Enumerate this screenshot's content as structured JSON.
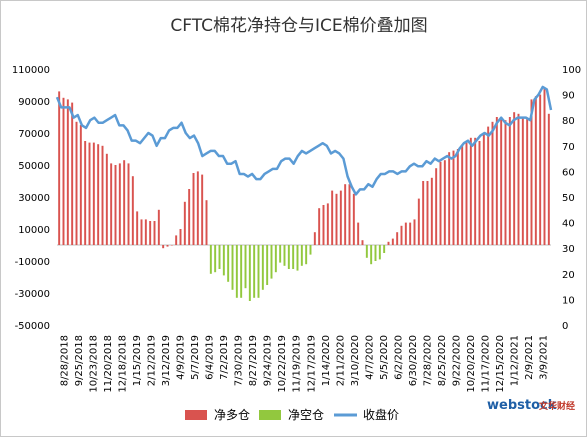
{
  "chart_data": {
    "type": "bar",
    "title": "CFTC棉花净持仓与ICE棉价叠加图",
    "left_axis": {
      "min": -50000,
      "max": 110000,
      "ticks": [
        -50000,
        -30000,
        -10000,
        10000,
        30000,
        50000,
        70000,
        90000,
        110000
      ]
    },
    "right_axis": {
      "min": 0,
      "max": 100,
      "ticks": [
        0,
        10,
        20,
        30,
        40,
        50,
        60,
        70,
        80,
        90,
        100
      ]
    },
    "x_tick_labels": [
      "8/28/2018",
      "9/25/2018",
      "10/23/2018",
      "11/20/2018",
      "12/18/2018",
      "1/15/2019",
      "2/12/2019",
      "3/12/2019",
      "4/9/2019",
      "5/7/2019",
      "6/4/2019",
      "7/2/2019",
      "7/30/2019",
      "8/27/2019",
      "9/24/2019",
      "10/22/2019",
      "11/19/2019",
      "12/17/2019",
      "1/14/2020",
      "2/11/2020",
      "3/10/2020",
      "4/7/2020",
      "5/5/2020",
      "6/2/2020",
      "6/30/2020",
      "7/28/2020",
      "8/25/2020",
      "9/22/2020",
      "10/20/2020",
      "11/17/2020",
      "12/15/2020",
      "1/12/2021",
      "2/9/2021",
      "3/9/2021"
    ],
    "series": [
      {
        "name": "净多仓",
        "color": "#d9534f",
        "axis": "left",
        "values": [
          96000,
          92000,
          91000,
          89000,
          77000,
          75000,
          65000,
          64000,
          64000,
          63000,
          62000,
          57000,
          51000,
          50000,
          51000,
          53000,
          51000,
          43000,
          21000,
          16000,
          16000,
          15000,
          15000,
          22000,
          -2000,
          -1000,
          0,
          6000,
          10000,
          27000,
          35000,
          45000,
          46000,
          44000,
          28000
        ]
      },
      {
        "name": "净空仓",
        "color": "#92c83e",
        "axis": "left",
        "values": [
          -18000,
          -17000,
          -15000,
          -19000,
          -23000,
          -28000,
          -33000,
          -33000,
          -27000,
          -35000,
          -33000,
          -33000,
          -28000,
          -25000,
          -21000,
          -17000,
          -11000,
          -13000,
          -15000,
          -15000,
          -16000,
          -13000,
          -12000,
          -6000
        ]
      },
      {
        "name": "净多仓",
        "color": "#d9534f",
        "axis": "left",
        "values": [
          8000,
          23000,
          25000,
          26000,
          34000,
          32000,
          34000,
          38000,
          38000,
          32000,
          14000,
          3000
        ]
      },
      {
        "name": "净空仓",
        "color": "#92c83e",
        "axis": "left",
        "values": [
          -8000,
          -12000,
          -10000,
          -9000,
          -5000
        ]
      },
      {
        "name": "净多仓",
        "color": "#d9534f",
        "axis": "left",
        "values": [
          2000,
          4000,
          8000,
          12000,
          14000,
          14000,
          16000,
          29000,
          40000,
          40000,
          42000,
          48000,
          52000,
          53000,
          58000,
          59000,
          60000,
          62000,
          64000,
          67000,
          67000,
          65000,
          70000,
          74000,
          77000,
          80000,
          80000,
          78000,
          80000,
          83000,
          82000,
          80000,
          79000,
          91000,
          93000,
          94000,
          98000,
          82000
        ]
      },
      {
        "name": "收盘价",
        "color": "#5b9bd5",
        "axis": "right",
        "values": [
          89,
          85,
          85,
          85,
          81,
          82,
          78,
          77,
          80,
          81,
          79,
          79,
          80,
          81,
          82,
          78,
          78,
          76,
          72,
          72,
          71,
          73,
          75,
          74,
          70,
          73,
          73,
          76,
          77,
          77,
          79,
          75,
          73,
          74,
          71,
          66,
          67,
          68,
          68,
          66,
          66,
          63,
          63,
          64,
          59,
          59,
          58,
          59,
          57,
          57,
          59,
          60,
          61,
          61,
          64,
          65,
          65,
          63,
          66,
          68,
          67,
          68,
          69,
          70,
          71,
          70,
          67,
          68,
          67,
          65,
          58,
          54,
          51,
          53,
          53,
          55,
          54,
          57,
          59,
          59,
          60,
          60,
          59,
          60,
          60,
          62,
          63,
          62,
          62,
          64,
          63,
          65,
          64,
          65,
          66,
          65,
          66,
          69,
          71,
          72,
          70,
          72,
          74,
          75,
          74,
          76,
          79,
          81,
          79,
          78,
          80,
          81,
          81,
          81,
          80,
          88,
          90,
          93,
          92,
          84
        ]
      }
    ],
    "legend": [
      {
        "label": "净多仓",
        "color": "#d9534f",
        "kind": "bar"
      },
      {
        "label": "净空仓",
        "color": "#92c83e",
        "kind": "bar"
      },
      {
        "label": "收盘价",
        "color": "#5b9bd5",
        "kind": "line"
      }
    ],
    "grid": false,
    "legend_position": "bottom-center"
  },
  "watermark": {
    "brand": "webstock",
    "text": "文华财经"
  }
}
